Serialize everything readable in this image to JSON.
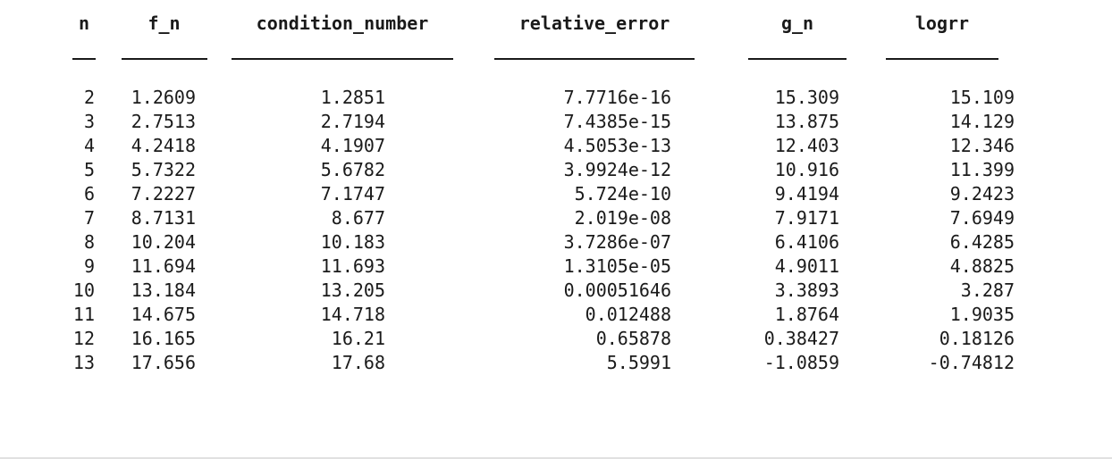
{
  "table": {
    "headers": [
      "n",
      "f_n",
      "condition_number",
      "relative_error",
      "g_n",
      "logrr"
    ],
    "rows": [
      [
        "2",
        "1.2609",
        "1.2851",
        "7.7716e-16",
        "15.309",
        "15.109"
      ],
      [
        "3",
        "2.7513",
        "2.7194",
        "7.4385e-15",
        "13.875",
        "14.129"
      ],
      [
        "4",
        "4.2418",
        "4.1907",
        "4.5053e-13",
        "12.403",
        "12.346"
      ],
      [
        "5",
        "5.7322",
        "5.6782",
        "3.9924e-12",
        "10.916",
        "11.399"
      ],
      [
        "6",
        "7.2227",
        "7.1747",
        "5.724e-10",
        "9.4194",
        "9.2423"
      ],
      [
        "7",
        "8.7131",
        "8.677",
        "2.019e-08",
        "7.9171",
        "7.6949"
      ],
      [
        "8",
        "10.204",
        "10.183",
        "3.7286e-07",
        "6.4106",
        "6.4285"
      ],
      [
        "9",
        "11.694",
        "11.693",
        "1.3105e-05",
        "4.9011",
        "4.8825"
      ],
      [
        "10",
        "13.184",
        "13.205",
        "0.00051646",
        "3.3893",
        "3.287"
      ],
      [
        "11",
        "14.675",
        "14.718",
        "0.012488",
        "1.8764",
        "1.9035"
      ],
      [
        "12",
        "16.165",
        "16.21",
        "0.65878",
        "0.38427",
        "0.18126"
      ],
      [
        "13",
        "17.656",
        "17.68",
        "5.5991",
        "-1.0859",
        "-0.74812"
      ]
    ]
  }
}
